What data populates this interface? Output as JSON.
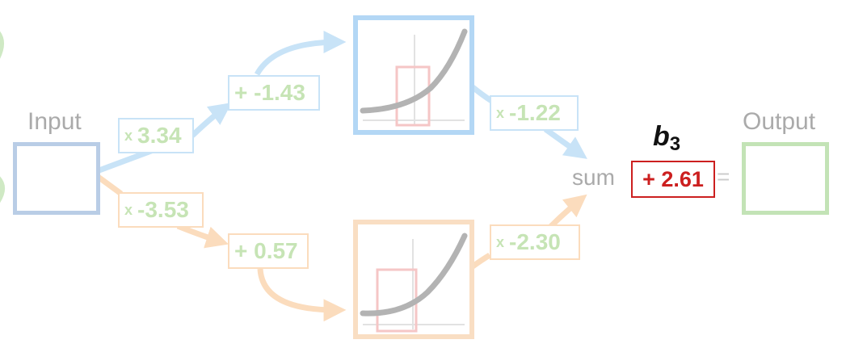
{
  "diagram": {
    "input_label": "Input",
    "output_label": "Output",
    "sum_label": "sum",
    "equals_sign": "=",
    "bias_symbol": "b",
    "bias_subscript": "3",
    "bias_value": "+ 2.61",
    "top_path": {
      "input_weight_sign": "x",
      "input_weight": "3.34",
      "bias": "+ -1.43",
      "output_weight_sign": "x",
      "output_weight": "-1.22"
    },
    "bottom_path": {
      "input_weight_sign": "x",
      "input_weight": "-3.53",
      "bias": "+ 0.57",
      "output_weight_sign": "x",
      "output_weight": "-2.30"
    }
  },
  "colors": {
    "input_node": "#b9cde6",
    "output_node": "#c3e3b6",
    "top_path": "#c8e3f7",
    "top_node_border": "#b3d7f5",
    "bottom_path": "#fbdcbd",
    "bottom_node_border": "#f9dec3",
    "weight_text": "#c6e4b5",
    "label_gray": "#aaaaaa",
    "bias_red": "#cc1f1f",
    "curve": "#b3b3b3",
    "highlight": "#f5c6c6"
  }
}
